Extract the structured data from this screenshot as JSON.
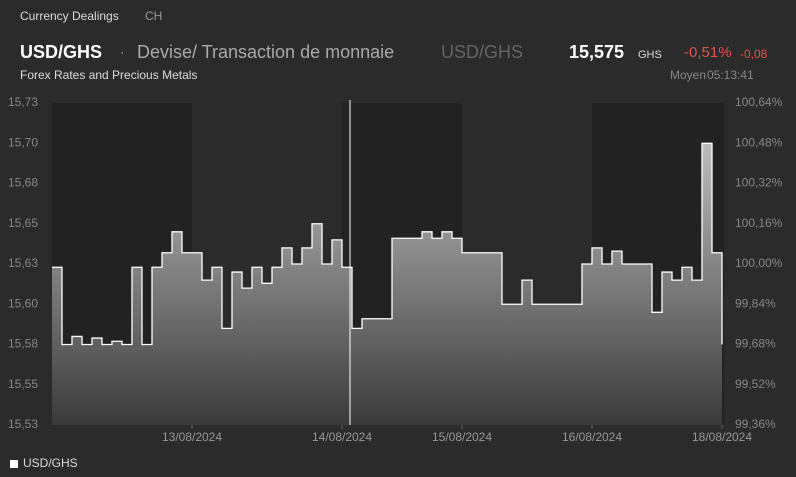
{
  "header": {
    "section": "Currency Dealings",
    "region": "CH",
    "symbol": "USD/GHS",
    "separator": "·",
    "description": "Devise/ Transaction de monnaie",
    "symbol_secondary": "USD/GHS",
    "price": "15,575",
    "currency": "GHS",
    "change_percent": "-0,51%",
    "change": "-0,08",
    "subtitle": "Forex Rates and Precious Metals",
    "price_type": "Moyen",
    "time": "05:13:41"
  },
  "chart_data": {
    "type": "area",
    "categories": [
      null,
      null,
      null,
      null,
      null,
      null,
      null,
      null,
      null,
      null,
      null,
      null,
      null,
      null,
      "13/08/2024",
      null,
      null,
      null,
      null,
      null,
      null,
      null,
      null,
      null,
      null,
      null,
      null,
      null,
      null,
      "14/08/2024",
      null,
      null,
      null,
      null,
      null,
      null,
      null,
      null,
      null,
      null,
      null,
      "15/08/2024",
      null,
      null,
      null,
      null,
      null,
      null,
      null,
      null,
      null,
      null,
      null,
      null,
      "16/08/2024",
      null,
      null,
      null,
      null,
      null,
      null,
      null,
      null,
      null,
      null,
      null,
      null,
      "18/08/2024"
    ],
    "series": [
      {
        "name": "USD/GHS",
        "color": "#ffffff",
        "values": [
          15.628,
          15.58,
          15.585,
          15.58,
          15.584,
          15.58,
          15.582,
          15.58,
          15.628,
          15.58,
          15.628,
          15.637,
          15.65,
          15.637,
          15.637,
          15.62,
          15.628,
          15.59,
          15.625,
          15.615,
          15.628,
          15.618,
          15.628,
          15.64,
          15.63,
          15.64,
          15.655,
          15.63,
          15.645,
          15.628,
          15.59,
          15.596,
          15.596,
          15.596,
          15.646,
          15.646,
          15.646,
          15.65,
          15.646,
          15.65,
          15.646,
          15.637,
          15.637,
          15.637,
          15.637,
          15.605,
          15.605,
          15.62,
          15.605,
          15.605,
          15.605,
          15.605,
          15.605,
          15.63,
          15.64,
          15.63,
          15.638,
          15.63,
          15.63,
          15.63,
          15.6,
          15.625,
          15.62,
          15.628,
          15.62,
          15.705,
          15.637,
          15.58
        ]
      }
    ],
    "ylim": [
      15.53,
      15.73
    ],
    "yticks": [
      {
        "value": 15.53,
        "label": "15,53"
      },
      {
        "value": 15.555,
        "label": "15,55"
      },
      {
        "value": 15.58,
        "label": "15,58"
      },
      {
        "value": 15.605,
        "label": "15,60"
      },
      {
        "value": 15.63,
        "label": "15,63"
      },
      {
        "value": 15.655,
        "label": "15,65"
      },
      {
        "value": 15.68,
        "label": "15,68"
      },
      {
        "value": 15.705,
        "label": "15,70"
      },
      {
        "value": 15.73,
        "label": "15,73"
      }
    ],
    "y2lim": [
      99.36,
      100.64
    ],
    "y2ticks": [
      {
        "value": 99.36,
        "label": "99,36%"
      },
      {
        "value": 99.52,
        "label": "99,52%"
      },
      {
        "value": 99.68,
        "label": "99,68%"
      },
      {
        "value": 99.84,
        "label": "99,84%"
      },
      {
        "value": 100,
        "label": "100,00%"
      },
      {
        "value": 100.16,
        "label": "100,16%"
      },
      {
        "value": 100.32,
        "label": "100,32%"
      },
      {
        "value": 100.48,
        "label": "100,48%"
      },
      {
        "value": 100.64,
        "label": "100,64%"
      }
    ],
    "grid": false,
    "legend": "bottom-left"
  }
}
